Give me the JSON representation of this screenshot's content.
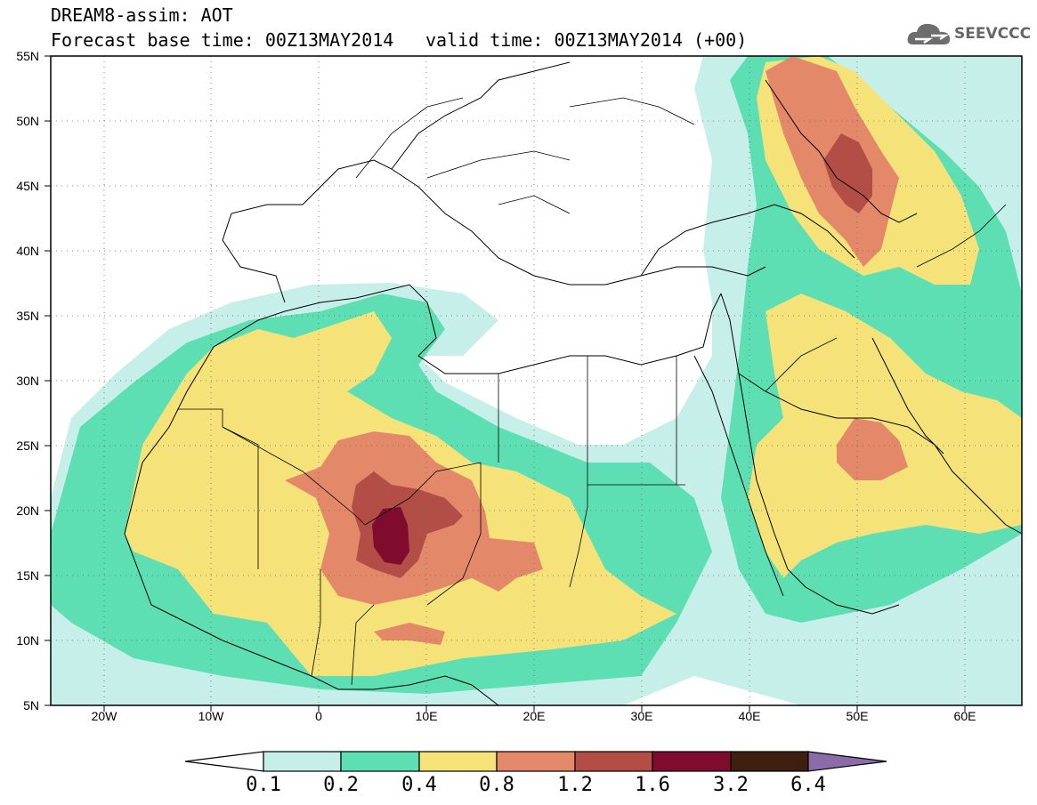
{
  "header": {
    "line1": "DREAM8-assim: AOT",
    "line2": "Forecast base time: 00Z13MAY2014",
    "valid": "valid time: 00Z13MAY2014 (+00)"
  },
  "logo": {
    "text": "SEEVCCC",
    "icon": "cloud-icon"
  },
  "axes": {
    "lat_labels": [
      "55N",
      "50N",
      "45N",
      "40N",
      "35N",
      "30N",
      "25N",
      "20N",
      "15N",
      "10N",
      "5N"
    ],
    "lon_labels": [
      "20W",
      "10W",
      "0",
      "10E",
      "20E",
      "30E",
      "40E",
      "50E",
      "60E"
    ]
  },
  "colorbar": {
    "labels": [
      "0.1",
      "0.2",
      "0.4",
      "0.8",
      "1.2",
      "1.6",
      "3.2",
      "6.4"
    ],
    "colors": [
      "#ffffff",
      "#c7efea",
      "#5edfb3",
      "#f5e37a",
      "#e4886a",
      "#b34e46",
      "#7f0b2f",
      "#3f2010",
      "#8c6ca8"
    ]
  }
}
